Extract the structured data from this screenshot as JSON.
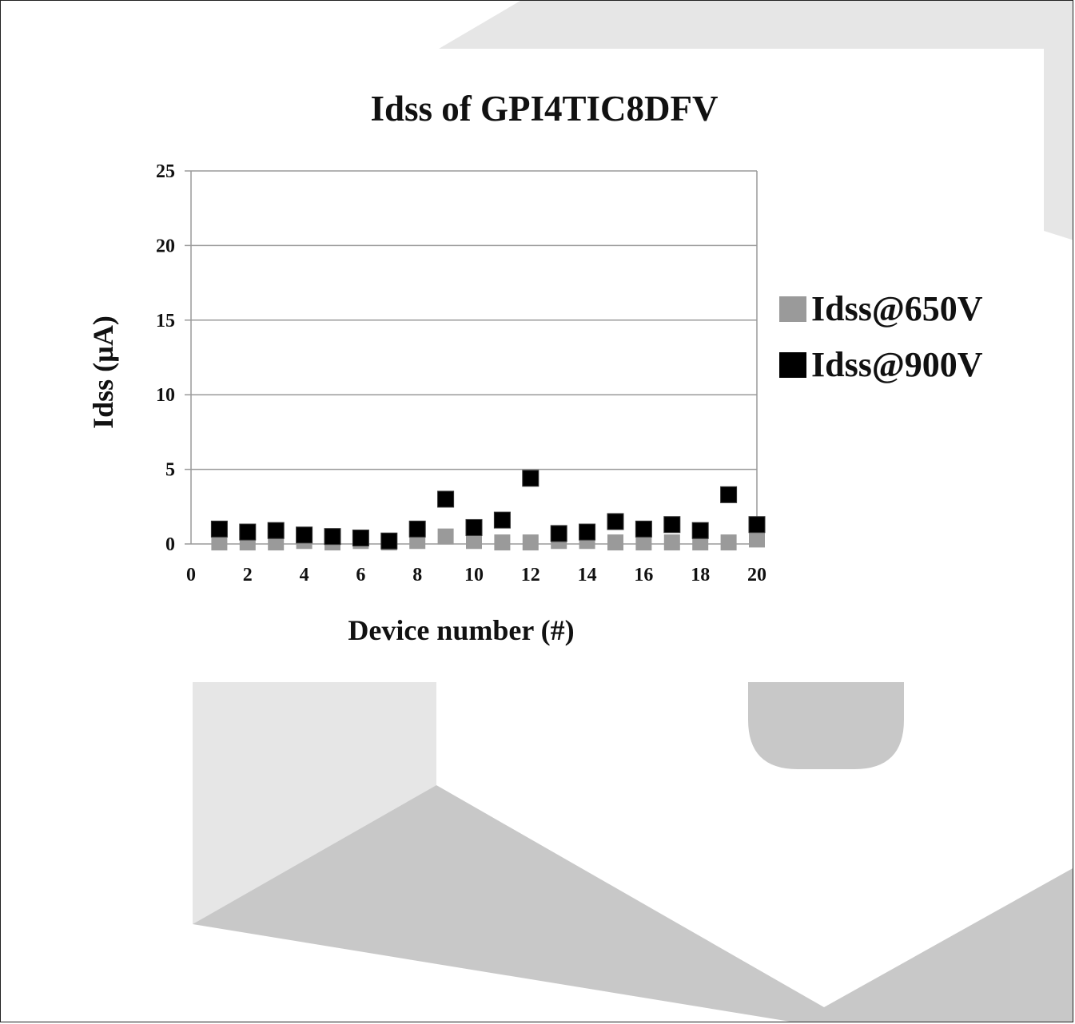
{
  "chart_data": {
    "type": "scatter",
    "title": "Idss of GPI4TIC8DFV",
    "xlabel": "Device number (#)",
    "ylabel": "Idss (µA)",
    "xlim": [
      0,
      20
    ],
    "ylim": [
      0,
      25
    ],
    "x_ticks": [
      "0",
      "2",
      "4",
      "6",
      "8",
      "10",
      "12",
      "14",
      "16",
      "18",
      "20"
    ],
    "y_ticks": [
      "0",
      "5",
      "10",
      "15",
      "20",
      "25"
    ],
    "grid": "horizontal",
    "legend_position": "right",
    "series": [
      {
        "name": "Idss@650V",
        "color": "#9a9a9a",
        "marker": "square",
        "x": [
          1,
          2,
          3,
          4,
          5,
          6,
          7,
          8,
          9,
          10,
          11,
          12,
          13,
          14,
          15,
          16,
          17,
          18,
          19,
          20
        ],
        "y": [
          0.1,
          0.1,
          0.1,
          0.2,
          0.1,
          0.2,
          0.1,
          0.2,
          0.5,
          0.2,
          0.1,
          0.1,
          0.2,
          0.2,
          0.1,
          0.1,
          0.1,
          0.1,
          0.1,
          0.3
        ]
      },
      {
        "name": "Idss@900V",
        "color": "#000000",
        "marker": "square",
        "x": [
          1,
          2,
          3,
          4,
          5,
          6,
          7,
          8,
          9,
          10,
          11,
          12,
          13,
          14,
          15,
          16,
          17,
          18,
          19,
          20
        ],
        "y": [
          1.0,
          0.8,
          0.9,
          0.6,
          0.5,
          0.4,
          0.2,
          1.0,
          3.0,
          1.1,
          1.6,
          4.4,
          0.7,
          0.8,
          1.5,
          1.0,
          1.3,
          0.9,
          3.3,
          1.3
        ]
      }
    ]
  },
  "background_colors": {
    "light": "#e6e6e6",
    "mid": "#c8c8c8"
  }
}
